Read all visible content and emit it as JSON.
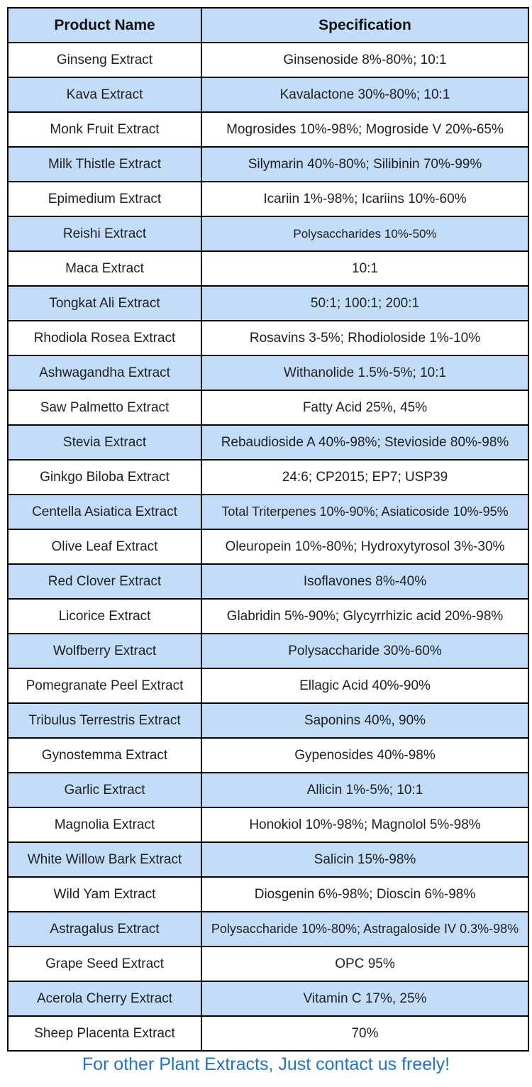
{
  "table": {
    "headers": [
      "Product Name",
      "Specification"
    ],
    "rows": [
      {
        "name": "Ginseng Extract",
        "spec": "Ginsenoside 8%-80%; 10:1"
      },
      {
        "name": "Kava Extract",
        "spec": "Kavalactone 30%-80%; 10:1"
      },
      {
        "name": "Monk Fruit Extract",
        "spec": "Mogrosides 10%-98%; Mogroside V 20%-65%"
      },
      {
        "name": "Milk Thistle Extract",
        "spec": "Silymarin 40%-80%; Silibinin 70%-99%"
      },
      {
        "name": "Epimedium Extract",
        "spec": "Icariin 1%-98%; Icariins 10%-60%"
      },
      {
        "name": "Reishi Extract",
        "spec": "Polysaccharides 10%-50%"
      },
      {
        "name": "Maca Extract",
        "spec": "10:1"
      },
      {
        "name": "Tongkat Ali Extract",
        "spec": "50:1; 100:1; 200:1"
      },
      {
        "name": "Rhodiola Rosea Extract",
        "spec": "Rosavins 3-5%; Rhodioloside 1%-10%"
      },
      {
        "name": "Ashwagandha Extract",
        "spec": "Withanolide 1.5%-5%; 10:1"
      },
      {
        "name": "Saw Palmetto Extract",
        "spec": "Fatty Acid 25%, 45%"
      },
      {
        "name": "Stevia Extract",
        "spec": "Rebaudioside A 40%-98%; Stevioside 80%-98%"
      },
      {
        "name": "Ginkgo Biloba Extract",
        "spec": "24:6; CP2015; EP7; USP39"
      },
      {
        "name": "Centella Asiatica Extract",
        "spec": "Total Triterpenes 10%-90%; Asiaticoside 10%-95%"
      },
      {
        "name": "Olive Leaf Extract",
        "spec": "Oleuropein 10%-80%; Hydroxytyrosol 3%-30%"
      },
      {
        "name": "Red Clover Extract",
        "spec": "Isoflavones 8%-40%"
      },
      {
        "name": "Licorice Extract",
        "spec": "Glabridin 5%-90%; Glycyrrhizic acid 20%-98%"
      },
      {
        "name": "Wolfberry Extract",
        "spec": "Polysaccharide 30%-60%"
      },
      {
        "name": "Pomegranate Peel Extract",
        "spec": "Ellagic Acid 40%-90%"
      },
      {
        "name": "Tribulus Terrestris Extract",
        "spec": "Saponins 40%, 90%"
      },
      {
        "name": "Gynostemma Extract",
        "spec": "Gypenosides 40%-98%"
      },
      {
        "name": "Garlic Extract",
        "spec": "Allicin 1%-5%; 10:1"
      },
      {
        "name": "Magnolia Extract",
        "spec": "Honokiol 10%-98%; Magnolol 5%-98%"
      },
      {
        "name": "White Willow Bark Extract",
        "spec": "Salicin 15%-98%"
      },
      {
        "name": "Wild Yam Extract",
        "spec": "Diosgenin 6%-98%; Dioscin 6%-98%"
      },
      {
        "name": "Astragalus Extract",
        "spec": "Polysaccharide 10%-80%; Astragaloside IV 0.3%-98%"
      },
      {
        "name": "Grape Seed Extract",
        "spec": "OPC 95%"
      },
      {
        "name": "Acerola Cherry Extract",
        "spec": "Vitamin C 17%, 25%"
      },
      {
        "name": "Sheep Placenta Extract",
        "spec": "70%"
      }
    ]
  },
  "footer": {
    "text": "For other Plant Extracts, Just contact us freely!"
  },
  "colors": {
    "row_alt": "#c3ddf8",
    "header_bg": "#c3ddf8",
    "border": "#000000",
    "text": "#1f1f1f",
    "footer_text": "#2272c5"
  }
}
